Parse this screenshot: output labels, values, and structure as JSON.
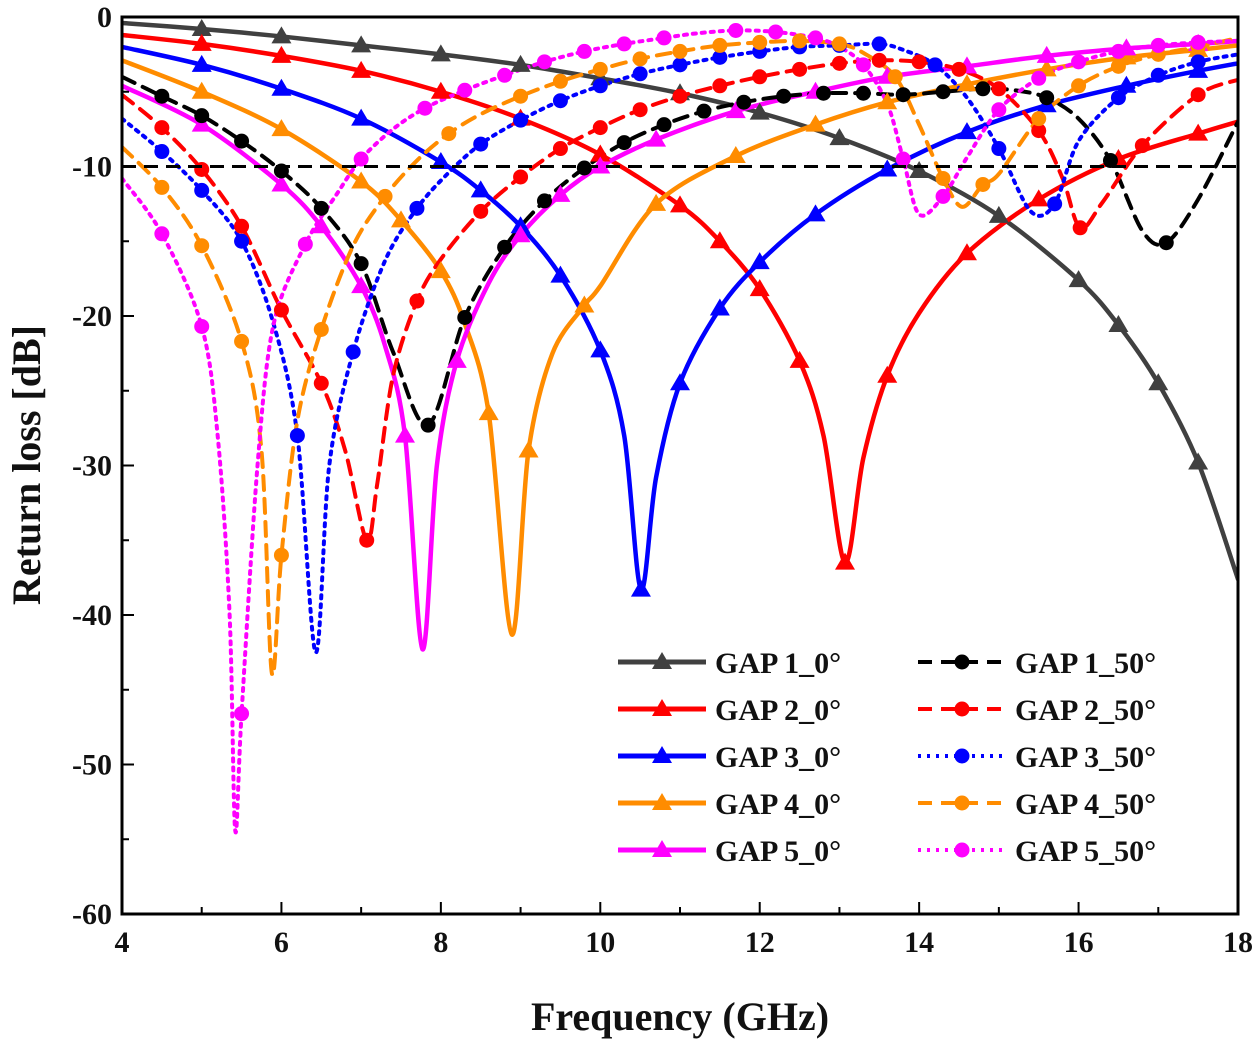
{
  "chart_data": {
    "type": "line",
    "title": "",
    "xlabel": "Frequency (GHz)",
    "ylabel": "Return loss [dB]",
    "xlim": [
      4,
      18
    ],
    "ylim": [
      -60,
      0
    ],
    "xticks": [
      4,
      6,
      8,
      10,
      12,
      14,
      16,
      18
    ],
    "xtick_labels": [
      "4",
      "6",
      "8",
      "10",
      "12",
      "14",
      "16",
      "18"
    ],
    "yticks": [
      0,
      -10,
      -20,
      -30,
      -40,
      -50,
      -60
    ],
    "ytick_labels": [
      "0",
      "-10",
      "-20",
      "-30",
      "-40",
      "-50",
      "-60"
    ],
    "grid": false,
    "legend_position": "bottom-right",
    "reference_line": {
      "y": -10,
      "style": "dashed",
      "color": "#000000"
    },
    "series": [
      {
        "name": "GAP 1_0°",
        "color": "#404040",
        "style": "solid",
        "marker": "triangle",
        "x": [
          4,
          5,
          6,
          7,
          8,
          9,
          10,
          11,
          12,
          13,
          14,
          15,
          16,
          16.5,
          17,
          17.5,
          18
        ],
        "y": [
          -0.4,
          -0.8,
          -1.3,
          -1.9,
          -2.5,
          -3.2,
          -4.1,
          -5.1,
          -6.4,
          -8.1,
          -10.3,
          -13.3,
          -17.6,
          -20.6,
          -24.5,
          -29.8,
          -37.6
        ]
      },
      {
        "name": "GAP 2_0°",
        "color": "#ff0000",
        "style": "solid",
        "marker": "triangle",
        "x": [
          4,
          5,
          6,
          7,
          8,
          9,
          10,
          11,
          11.5,
          12,
          12.5,
          12.8,
          13.07,
          13.3,
          13.6,
          14,
          14.6,
          15.5,
          16.5,
          17.5,
          18
        ],
        "y": [
          -1.2,
          -1.8,
          -2.6,
          -3.6,
          -5.0,
          -6.8,
          -9.2,
          -12.6,
          -15.0,
          -18.2,
          -23.0,
          -28.0,
          -36.5,
          -29.5,
          -24.0,
          -19.8,
          -15.8,
          -12.2,
          -9.5,
          -7.8,
          -7.0
        ]
      },
      {
        "name": "GAP 3_0°",
        "color": "#0000ff",
        "style": "solid",
        "marker": "triangle",
        "x": [
          4,
          5,
          6,
          7,
          8,
          8.5,
          9,
          9.5,
          10,
          10.3,
          10.51,
          10.7,
          11,
          11.5,
          12,
          12.7,
          13.6,
          14.6,
          15.6,
          16.6,
          17.5,
          18
        ],
        "y": [
          -2.0,
          -3.2,
          -4.8,
          -6.8,
          -9.7,
          -11.6,
          -14.0,
          -17.3,
          -22.3,
          -28.0,
          -38.3,
          -30.8,
          -24.5,
          -19.5,
          -16.4,
          -13.2,
          -10.2,
          -7.7,
          -5.9,
          -4.6,
          -3.6,
          -3.1
        ]
      },
      {
        "name": "GAP 4_0°",
        "color": "#ff8c00",
        "style": "solid",
        "marker": "triangle",
        "x": [
          4,
          5,
          6,
          7,
          7.5,
          8,
          8.3,
          8.6,
          8.89,
          9.1,
          9.4,
          9.8,
          10,
          10.7,
          11.7,
          12.7,
          13.6,
          14.6,
          15.6,
          16.6,
          17.5,
          18
        ],
        "y": [
          -2.9,
          -5.0,
          -7.5,
          -11.0,
          -13.6,
          -17.0,
          -20.5,
          -26.5,
          -41.3,
          -29.0,
          -22.5,
          -19.3,
          -18.0,
          -12.5,
          -9.3,
          -7.2,
          -5.7,
          -4.5,
          -3.5,
          -2.7,
          -2.2,
          -1.9
        ]
      },
      {
        "name": "GAP 5_0°",
        "color": "#ff00ff",
        "style": "solid",
        "marker": "triangle",
        "x": [
          4,
          5,
          6,
          6.5,
          7,
          7.3,
          7.55,
          7.77,
          7.95,
          8.2,
          8.6,
          9,
          9.5,
          10,
          10.7,
          11.7,
          12.7,
          13.6,
          14.6,
          15.6,
          16.6,
          17.5,
          18
        ],
        "y": [
          -4.6,
          -7.2,
          -11.2,
          -14.0,
          -18.0,
          -22.0,
          -28.0,
          -42.3,
          -30.0,
          -23.0,
          -17.8,
          -14.6,
          -11.9,
          -10.0,
          -8.2,
          -6.3,
          -5.0,
          -4.0,
          -3.3,
          -2.6,
          -2.1,
          -1.8,
          -1.6
        ]
      },
      {
        "name": "GAP 1_50°",
        "color": "#000000",
        "style": "dashed",
        "marker": "circle",
        "x": [
          4,
          4.5,
          5,
          5.5,
          6,
          6.5,
          7,
          7.4,
          7.84,
          8.3,
          8.8,
          9.3,
          9.8,
          10.3,
          10.8,
          11.3,
          11.8,
          12.3,
          12.8,
          13.3,
          13.8,
          14.3,
          14.8,
          15.2,
          15.6,
          16,
          16.4,
          16.8,
          17.1,
          17.5,
          18
        ],
        "y": [
          -4.0,
          -5.3,
          -6.6,
          -8.3,
          -10.3,
          -12.8,
          -16.5,
          -22.4,
          -27.3,
          -20.1,
          -15.4,
          -12.3,
          -10.1,
          -8.4,
          -7.2,
          -6.3,
          -5.7,
          -5.3,
          -5.1,
          -5.1,
          -5.2,
          -5.0,
          -4.8,
          -4.9,
          -5.4,
          -6.8,
          -9.6,
          -14.3,
          -15.1,
          -12.2,
          -7.0
        ]
      },
      {
        "name": "GAP 2_50°",
        "color": "#ff0000",
        "style": "dashed",
        "marker": "circle",
        "x": [
          4,
          4.5,
          5,
          5.5,
          6,
          6.5,
          6.8,
          7.07,
          7.2,
          7.4,
          7.7,
          8.0,
          8.5,
          9,
          9.5,
          10,
          10.5,
          11,
          11.5,
          12,
          12.5,
          13,
          13.5,
          14,
          14.5,
          15,
          15.5,
          15.8,
          16.02,
          16.3,
          16.8,
          17.5,
          18
        ],
        "y": [
          -5.2,
          -7.4,
          -10.2,
          -14.0,
          -19.6,
          -24.5,
          -29.0,
          -35.0,
          -31.3,
          -24.0,
          -19.0,
          -16.2,
          -13.0,
          -10.7,
          -8.8,
          -7.4,
          -6.2,
          -5.3,
          -4.6,
          -4.0,
          -3.5,
          -3.1,
          -2.9,
          -3.0,
          -3.5,
          -4.8,
          -7.6,
          -10.8,
          -14.1,
          -12.4,
          -8.6,
          -5.2,
          -4.2
        ]
      },
      {
        "name": "GAP 3_50°",
        "color": "#0000ff",
        "style": "dashed-dot",
        "dash": "dotted",
        "marker": "circle",
        "x": [
          4,
          4.5,
          5,
          5.5,
          5.9,
          6.2,
          6.43,
          6.6,
          6.9,
          7.3,
          7.7,
          8.1,
          8.5,
          9,
          9.5,
          10,
          10.5,
          11,
          11.5,
          12,
          12.5,
          13,
          13.5,
          13.8,
          14.2,
          14.6,
          15.0,
          15.4,
          15.7,
          16,
          16.5,
          17,
          17.5,
          18
        ],
        "y": [
          -6.8,
          -9.0,
          -11.6,
          -15.0,
          -20.5,
          -28.0,
          -42.5,
          -30.0,
          -22.4,
          -16.3,
          -12.8,
          -10.4,
          -8.5,
          -6.9,
          -5.6,
          -4.6,
          -3.8,
          -3.2,
          -2.7,
          -2.3,
          -2.0,
          -1.9,
          -1.8,
          -2.2,
          -3.2,
          -5.4,
          -8.8,
          -13.0,
          -12.5,
          -8.3,
          -5.4,
          -3.9,
          -3.0,
          -2.5
        ]
      },
      {
        "name": "GAP 4_50°",
        "color": "#ff8c00",
        "style": "dashed",
        "marker": "circle",
        "x": [
          4,
          4.5,
          5,
          5.5,
          5.75,
          5.88,
          6.0,
          6.2,
          6.5,
          6.9,
          7.3,
          7.7,
          8.1,
          8.5,
          9,
          9.5,
          10,
          10.5,
          11,
          11.5,
          12,
          12.5,
          13,
          13.3,
          13.7,
          14.0,
          14.3,
          14.54,
          14.8,
          15.0,
          15.5,
          16,
          16.5,
          17,
          17.5,
          18
        ],
        "y": [
          -8.7,
          -11.4,
          -15.3,
          -21.7,
          -29.0,
          -43.9,
          -36.0,
          -27.0,
          -20.9,
          -15.3,
          -12.0,
          -9.6,
          -7.8,
          -6.5,
          -5.3,
          -4.3,
          -3.5,
          -2.8,
          -2.3,
          -1.9,
          -1.7,
          -1.6,
          -1.8,
          -2.4,
          -4.0,
          -7.2,
          -10.8,
          -12.7,
          -11.2,
          -10.5,
          -6.8,
          -4.6,
          -3.3,
          -2.5,
          -2.0,
          -1.4
        ]
      },
      {
        "name": "GAP 5_50°",
        "color": "#ff00ff",
        "style": "dotted",
        "marker": "circle",
        "x": [
          4,
          4.5,
          5,
          5.2,
          5.35,
          5.42,
          5.5,
          5.7,
          5.9,
          6.3,
          6.7,
          7.0,
          7.4,
          7.8,
          8.3,
          8.8,
          9.3,
          9.8,
          10.3,
          10.8,
          11.2,
          11.7,
          12.2,
          12.7,
          13.0,
          13.3,
          13.6,
          13.8,
          14.0,
          14.3,
          14.6,
          15.0,
          15.5,
          16,
          16.5,
          17,
          17.5,
          18
        ],
        "y": [
          -10.8,
          -14.5,
          -20.7,
          -28.0,
          -40.0,
          -54.4,
          -46.6,
          -30.0,
          -20.6,
          -15.2,
          -11.8,
          -9.5,
          -7.5,
          -6.1,
          -4.9,
          -3.9,
          -3.0,
          -2.3,
          -1.8,
          -1.4,
          -1.1,
          -0.9,
          -1.0,
          -1.4,
          -2.0,
          -3.2,
          -5.8,
          -9.5,
          -13.2,
          -12.0,
          -9.4,
          -6.2,
          -4.1,
          -3.0,
          -2.3,
          -1.9,
          -1.7,
          -1.6
        ]
      }
    ],
    "legend": [
      "GAP 1_0°",
      "GAP 1_50°",
      "GAP 2_0°",
      "GAP 2_50°",
      "GAP 3_0°",
      "GAP 3_50°",
      "GAP 4_0°",
      "GAP 4_50°",
      "GAP 5_0°",
      "GAP 5_50°"
    ]
  }
}
